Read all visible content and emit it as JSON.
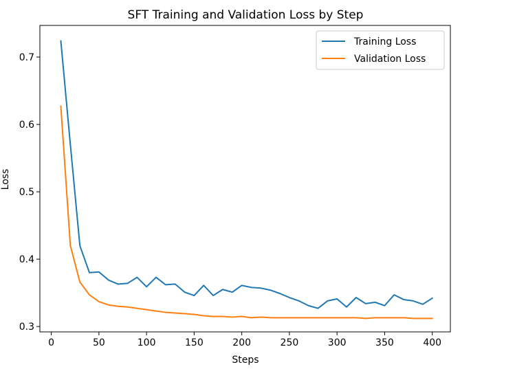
{
  "chart_data": {
    "type": "line",
    "title": "SFT Training and Validation Loss by Step",
    "xlabel": "Steps",
    "ylabel": "Loss",
    "xlim": [
      -12,
      419
    ],
    "ylim": [
      0.292,
      0.747
    ],
    "xticks": [
      0,
      50,
      100,
      150,
      200,
      250,
      300,
      350,
      400
    ],
    "xtick_labels": [
      "0",
      "50",
      "100",
      "150",
      "200",
      "250",
      "300",
      "350",
      "400"
    ],
    "yticks": [
      0.3,
      0.4,
      0.5,
      0.6,
      0.7
    ],
    "ytick_labels": [
      "0.3",
      "0.4",
      "0.5",
      "0.6",
      "0.7"
    ],
    "grid": false,
    "legend_position": "top-right",
    "x": [
      10,
      20,
      30,
      40,
      50,
      60,
      70,
      80,
      90,
      100,
      110,
      120,
      130,
      140,
      150,
      160,
      170,
      180,
      190,
      200,
      210,
      220,
      230,
      240,
      250,
      260,
      270,
      280,
      290,
      300,
      310,
      320,
      330,
      340,
      350,
      360,
      370,
      380,
      390,
      400
    ],
    "series": [
      {
        "name": "Training Loss",
        "color": "#1f77b4",
        "values": [
          0.724,
          0.57,
          0.42,
          0.38,
          0.381,
          0.369,
          0.363,
          0.364,
          0.373,
          0.359,
          0.373,
          0.362,
          0.363,
          0.351,
          0.346,
          0.361,
          0.346,
          0.355,
          0.351,
          0.361,
          0.358,
          0.357,
          0.354,
          0.349,
          0.343,
          0.338,
          0.331,
          0.327,
          0.338,
          0.341,
          0.329,
          0.343,
          0.334,
          0.336,
          0.331,
          0.347,
          0.34,
          0.338,
          0.333,
          0.342
        ]
      },
      {
        "name": "Validation Loss",
        "color": "#ff7f0e",
        "values": [
          0.627,
          0.42,
          0.366,
          0.347,
          0.337,
          0.332,
          0.33,
          0.329,
          0.327,
          0.325,
          0.323,
          0.321,
          0.32,
          0.319,
          0.318,
          0.316,
          0.315,
          0.315,
          0.314,
          0.315,
          0.313,
          0.314,
          0.313,
          0.313,
          0.313,
          0.313,
          0.313,
          0.313,
          0.313,
          0.313,
          0.313,
          0.313,
          0.312,
          0.313,
          0.313,
          0.313,
          0.313,
          0.312,
          0.312,
          0.312
        ]
      }
    ]
  }
}
